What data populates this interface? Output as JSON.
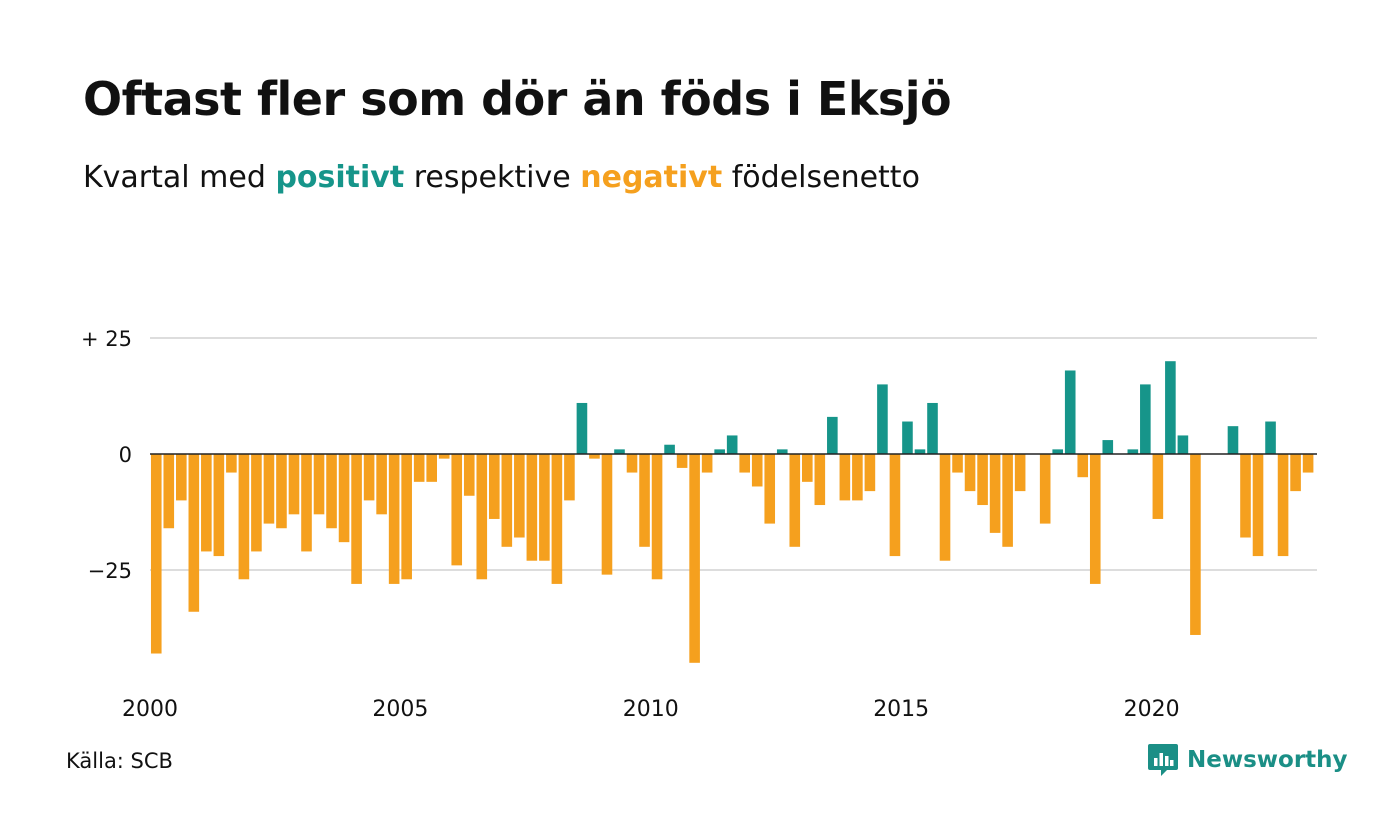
{
  "header": {
    "title": "Oftast fler som dör än föds i Eksjö",
    "subtitle_pre": "Kvartal med",
    "subtitle_pos": "positivt",
    "subtitle_mid": "respektive",
    "subtitle_neg": "negativt",
    "subtitle_post": "födelsenetto"
  },
  "footer": {
    "source": "Källa: SCB",
    "brand": "Newsworthy",
    "brand_icon": "bar-chart-logo-icon"
  },
  "colors": {
    "positive": "#16958a",
    "negative": "#f5a01e",
    "grid": "#dddddd",
    "zero_line": "#222222"
  },
  "chart_data": {
    "type": "bar",
    "x_start": 2000,
    "periods_per_year": 4,
    "ylim": [
      -48,
      30
    ],
    "yticks": [
      25,
      0,
      -25
    ],
    "ytick_labels": [
      "+ 25",
      "0",
      "−25"
    ],
    "xticks": [
      2000,
      2005,
      2010,
      2015,
      2020
    ],
    "values": [
      -43,
      -16,
      -10,
      -34,
      -21,
      -22,
      -4,
      -27,
      -21,
      -15,
      -16,
      -13,
      -21,
      -13,
      -16,
      -19,
      -28,
      -10,
      -13,
      -28,
      -27,
      -6,
      -6,
      -1,
      -24,
      -9,
      -27,
      -14,
      -20,
      -18,
      -23,
      -23,
      -28,
      -10,
      11,
      -1,
      -26,
      1,
      -4,
      -20,
      -27,
      2,
      -3,
      -45,
      -4,
      1,
      4,
      -4,
      -7,
      -15,
      1,
      -20,
      -6,
      -11,
      8,
      -10,
      -10,
      -8,
      15,
      -22,
      7,
      1,
      11,
      -23,
      -4,
      -8,
      -11,
      -17,
      -20,
      -8,
      0,
      -15,
      1,
      18,
      -5,
      -28,
      3,
      0,
      1,
      15,
      -14,
      20,
      4,
      -39,
      0,
      0,
      6,
      -18,
      -22,
      7,
      -22,
      -8,
      -4
    ]
  }
}
